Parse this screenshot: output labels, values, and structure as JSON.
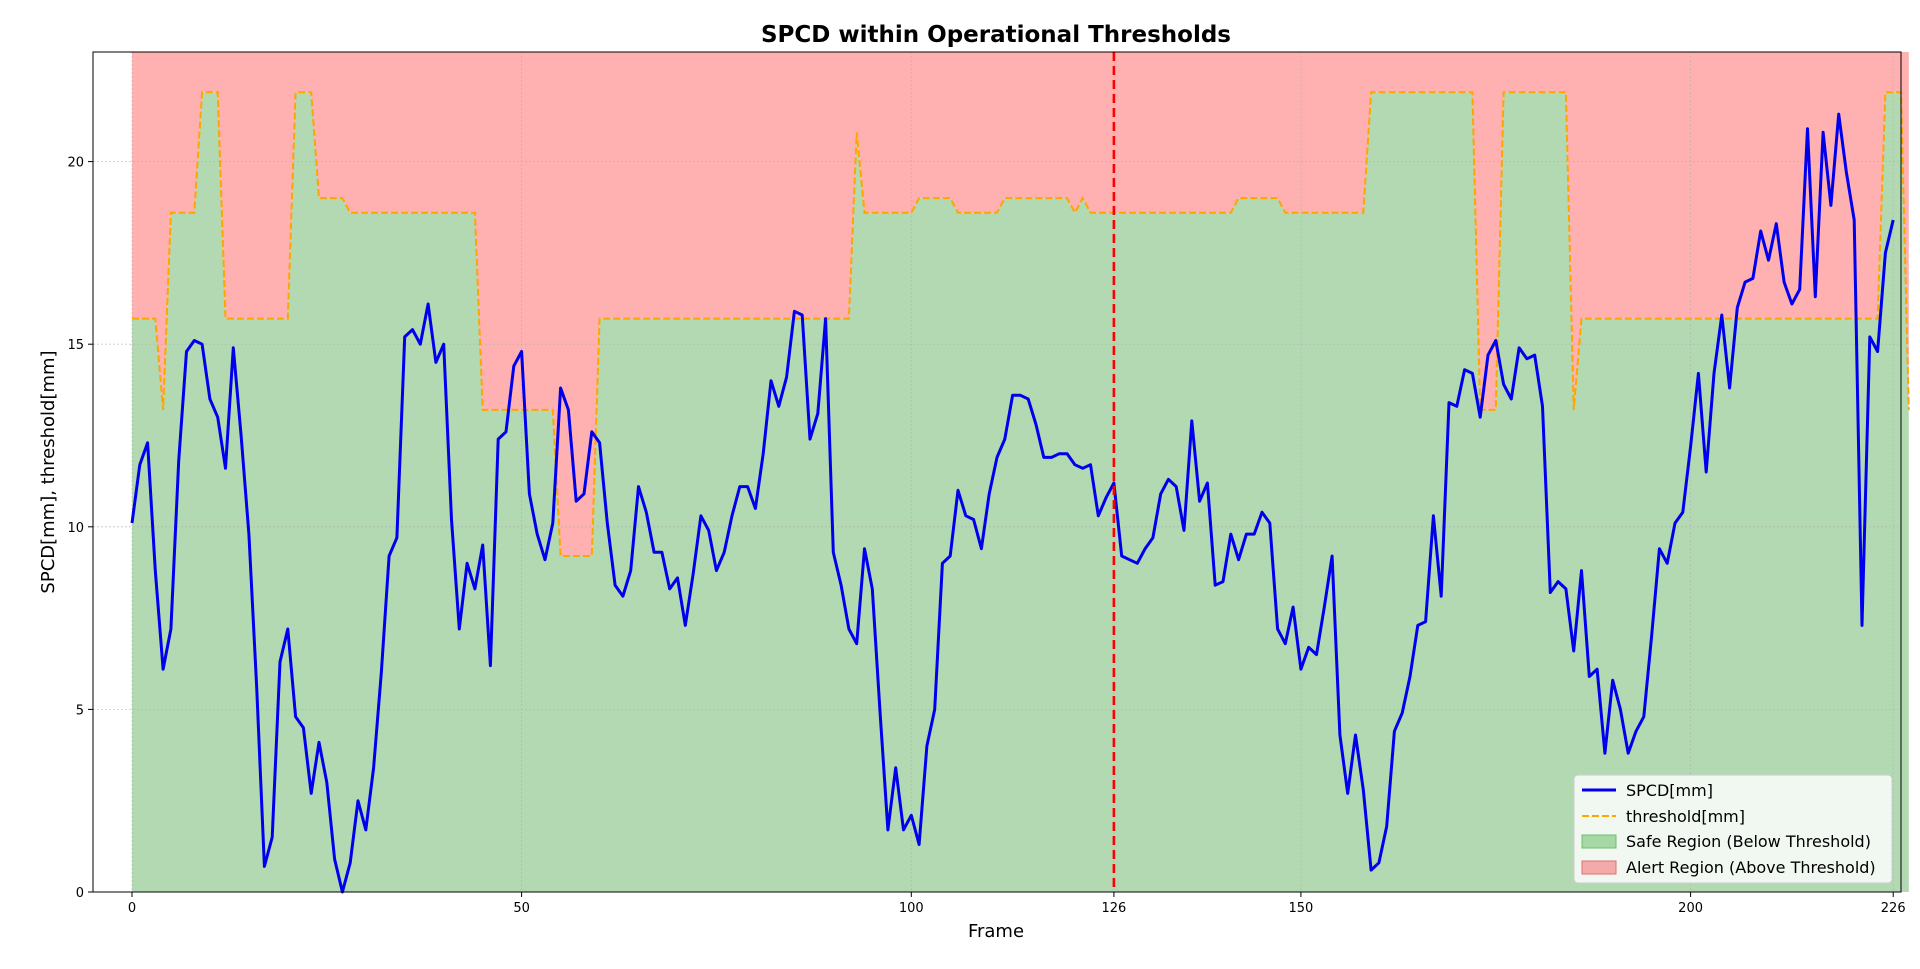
{
  "chart_data": {
    "type": "line",
    "title": "SPCD within Operational Thresholds",
    "xlabel": "Frame",
    "ylabel": "SPCD[mm], threshold[mm]",
    "xlim": [
      -5,
      227
    ],
    "ylim": [
      0,
      23
    ],
    "xticks": [
      0,
      50,
      100,
      126,
      150,
      200,
      226
    ],
    "yticks": [
      0,
      5,
      10,
      15,
      20
    ],
    "grid": true,
    "legend_position": "bottom-right",
    "marker_line": {
      "x": 126,
      "color": "#ff0000",
      "style": "dashed"
    },
    "series": [
      {
        "name": "SPCD[mm]",
        "color": "#0000ee",
        "style": "solid",
        "x_start": 0,
        "x_step": 1,
        "values": [
          10.1,
          11.7,
          12.3,
          8.8,
          6.1,
          7.2,
          11.8,
          14.8,
          15.1,
          15.0,
          13.5,
          13.0,
          11.6,
          14.9,
          12.5,
          9.8,
          5.6,
          0.7,
          1.5,
          6.3,
          7.2,
          4.8,
          4.5,
          2.7,
          4.1,
          3.0,
          0.9,
          0.0,
          0.8,
          2.5,
          1.7,
          3.4,
          6.0,
          9.2,
          9.7,
          15.2,
          15.4,
          15.0,
          16.1,
          14.5,
          15.0,
          10.2,
          7.2,
          9.0,
          8.3,
          9.5,
          6.2,
          12.4,
          12.6,
          14.4,
          14.8,
          10.9,
          9.8,
          9.1,
          10.1,
          13.8,
          13.2,
          10.7,
          10.9,
          12.6,
          12.3,
          10.1,
          8.4,
          8.1,
          8.8,
          11.1,
          10.4,
          9.3,
          9.3,
          8.3,
          8.6,
          7.3,
          8.7,
          10.3,
          9.9,
          8.8,
          9.3,
          10.3,
          11.1,
          11.1,
          10.5,
          12.0,
          14.0,
          13.3,
          14.1,
          15.9,
          15.8,
          12.4,
          13.1,
          15.7,
          9.3,
          8.4,
          7.2,
          6.8,
          9.4,
          8.3,
          4.9,
          1.7,
          3.4,
          1.7,
          2.1,
          1.3,
          4.0,
          5.0,
          9.0,
          9.2,
          11.0,
          10.3,
          10.2,
          9.4,
          10.9,
          11.9,
          12.4,
          13.6,
          13.6,
          13.5,
          12.8,
          11.9,
          11.9,
          12.0,
          12.0,
          11.7,
          11.6,
          11.7,
          10.3,
          10.8,
          11.2,
          9.2,
          9.1,
          9.0,
          9.4,
          9.7,
          10.9,
          11.3,
          11.1,
          9.9,
          12.9,
          10.7,
          11.2,
          8.4,
          8.5,
          9.8,
          9.1,
          9.8,
          9.8,
          10.4,
          10.1,
          7.2,
          6.8,
          7.8,
          6.1,
          6.7,
          6.5,
          7.8,
          9.2,
          4.3,
          2.7,
          4.3,
          2.8,
          0.6,
          0.8,
          1.8,
          4.4,
          4.9,
          5.9,
          7.3,
          7.4,
          10.3,
          8.1,
          13.4,
          13.3,
          14.3,
          14.2,
          13.0,
          14.7,
          15.1,
          13.9,
          13.5,
          14.9,
          14.6,
          14.7,
          13.3,
          8.2,
          8.5,
          8.3,
          6.6,
          8.8,
          5.9,
          6.1,
          3.8,
          5.8,
          5.0,
          3.8,
          4.4,
          4.8,
          7.0,
          9.4,
          9.0,
          10.1,
          10.4,
          12.2,
          14.2,
          11.5,
          14.2,
          15.8,
          13.8,
          16.0,
          16.7,
          16.8,
          18.1,
          17.3,
          18.3,
          16.7,
          16.1,
          16.5,
          20.9,
          16.3,
          20.8,
          18.8,
          21.3,
          19.7,
          18.4,
          7.3,
          15.2,
          14.8,
          17.5,
          18.4
        ]
      },
      {
        "name": "threshold[mm]",
        "color": "#ffa500",
        "style": "dashed",
        "x_start": 0,
        "x_step": 1,
        "values": [
          15.7,
          15.7,
          15.7,
          15.7,
          13.2,
          18.6,
          18.6,
          18.6,
          18.6,
          21.9,
          21.9,
          21.9,
          15.7,
          15.7,
          15.7,
          15.7,
          15.7,
          15.7,
          15.7,
          15.7,
          15.7,
          21.9,
          21.9,
          21.9,
          19.0,
          19.0,
          19.0,
          19.0,
          18.6,
          18.6,
          18.6,
          18.6,
          18.6,
          18.6,
          18.6,
          18.6,
          18.6,
          18.6,
          18.6,
          18.6,
          18.6,
          18.6,
          18.6,
          18.6,
          18.6,
          13.2,
          13.2,
          13.2,
          13.2,
          13.2,
          13.2,
          13.2,
          13.2,
          13.2,
          13.2,
          9.2,
          9.2,
          9.2,
          9.2,
          9.2,
          15.7,
          15.7,
          15.7,
          15.7,
          15.7,
          15.7,
          15.7,
          15.7,
          15.7,
          15.7,
          15.7,
          15.7,
          15.7,
          15.7,
          15.7,
          15.7,
          15.7,
          15.7,
          15.7,
          15.7,
          15.7,
          15.7,
          15.7,
          15.7,
          15.7,
          15.7,
          15.7,
          15.7,
          15.7,
          15.7,
          15.7,
          15.7,
          15.7,
          20.8,
          18.6,
          18.6,
          18.6,
          18.6,
          18.6,
          18.6,
          18.6,
          19.0,
          19.0,
          19.0,
          19.0,
          19.0,
          18.6,
          18.6,
          18.6,
          18.6,
          18.6,
          18.6,
          19.0,
          19.0,
          19.0,
          19.0,
          19.0,
          19.0,
          19.0,
          19.0,
          19.0,
          18.6,
          19.0,
          18.6,
          18.6,
          18.6,
          18.6,
          18.6,
          18.6,
          18.6,
          18.6,
          18.6,
          18.6,
          18.6,
          18.6,
          18.6,
          18.6,
          18.6,
          18.6,
          18.6,
          18.6,
          18.6,
          19.0,
          19.0,
          19.0,
          19.0,
          19.0,
          19.0,
          18.6,
          18.6,
          18.6,
          18.6,
          18.6,
          18.6,
          18.6,
          18.6,
          18.6,
          18.6,
          18.6,
          21.9,
          21.9,
          21.9,
          21.9,
          21.9,
          21.9,
          21.9,
          21.9,
          21.9,
          21.9,
          21.9,
          21.9,
          21.9,
          21.9,
          13.2,
          13.2,
          13.2,
          21.9,
          21.9,
          21.9,
          21.9,
          21.9,
          21.9,
          21.9,
          21.9,
          21.9,
          13.2,
          15.7,
          15.7,
          15.7,
          15.7,
          15.7,
          15.7,
          15.7,
          15.7,
          15.7,
          15.7,
          15.7,
          15.7,
          15.7,
          15.7,
          15.7,
          15.7,
          15.7,
          15.7,
          15.7,
          15.7,
          15.7,
          15.7,
          15.7,
          15.7,
          15.7,
          15.7,
          15.7,
          15.7,
          15.7,
          15.7,
          15.7,
          15.7,
          15.7,
          15.7,
          15.7,
          15.7,
          15.7,
          15.7,
          15.7,
          21.9,
          21.9,
          21.9,
          13.2
        ]
      }
    ],
    "regions": [
      {
        "name": "Safe Region (Below Threshold)",
        "color": "#b3d9b3",
        "legend_color": "#a6d8a6",
        "legend_edge": "#6abf6a",
        "fill": "below_threshold"
      },
      {
        "name": "Alert Region (Above Threshold)",
        "color": "#ffb0b0",
        "legend_color": "#f5aaaa",
        "legend_edge": "#e07070",
        "fill": "above_threshold"
      }
    ]
  }
}
